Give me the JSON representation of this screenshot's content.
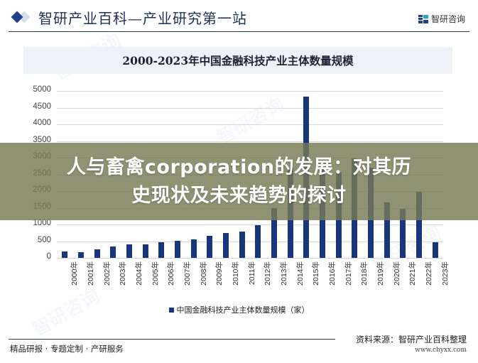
{
  "header": {
    "title": "智研产业百科—产业研究第一站",
    "brand_label": "智研咨询",
    "colors": {
      "accent": "#1f3f8f",
      "rule": "#2b3a5a"
    }
  },
  "chart_title": "2000-2023年中国金融科技产业主体数量规模",
  "legend": {
    "label": "中国金融科技产业主体数量规模（家）",
    "color": "#17367c"
  },
  "footer": {
    "left": "精品研报 · 专题定制 · 产研服务",
    "source": "资料来源：智研产业百科整理",
    "url": "www.chyxx.com"
  },
  "banner": {
    "line1": "人与畜禽corporation的发展：对其历",
    "line2": "史现状及未来趋势的探讨"
  },
  "watermarks": [
    "智研咨询"
  ],
  "chart_data": {
    "type": "bar",
    "title": "2000-2023年中国金融科技产业主体数量规模",
    "xlabel": "",
    "ylabel": "",
    "ylim": [
      0,
      5000
    ],
    "yticks": [
      0,
      500,
      1000,
      1500,
      2000,
      2500,
      3000,
      3500,
      4000,
      4500,
      5000
    ],
    "grid": true,
    "legend_position": "bottom",
    "categories": [
      "2000年",
      "2001年",
      "2002年",
      "2003年",
      "2004年",
      "2005年",
      "2006年",
      "2007年",
      "2008年",
      "2009年",
      "2010年",
      "2011年",
      "2012年",
      "2013年",
      "2014年",
      "2015年",
      "2016年",
      "2017年",
      "2018年",
      "2019年",
      "2020年",
      "2021年",
      "2022年",
      "2023年"
    ],
    "series": [
      {
        "name": "中国金融科技产业主体数量规模（家）",
        "color": "#17367c",
        "values": [
          185,
          180,
          250,
          335,
          400,
          400,
          460,
          505,
          545,
          655,
          740,
          780,
          970,
          1480,
          2700,
          4830,
          2680,
          2550,
          2970,
          2700,
          1650,
          1460,
          1970,
          460
        ]
      }
    ]
  }
}
